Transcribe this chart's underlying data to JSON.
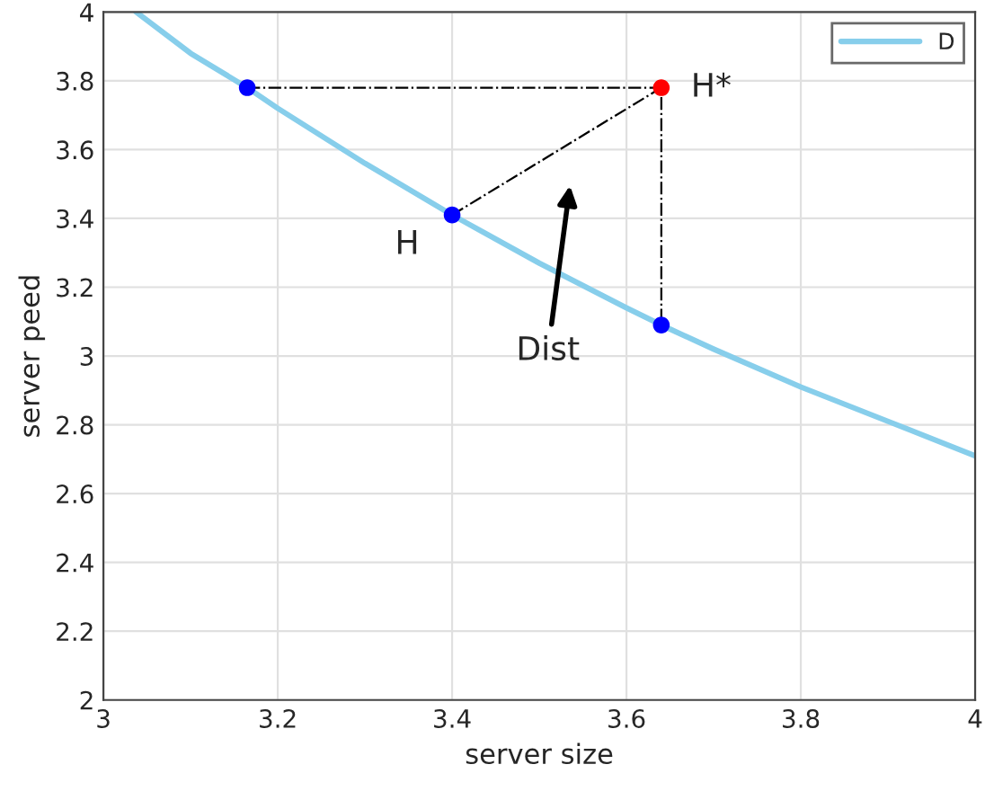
{
  "chart_data": {
    "type": "line",
    "xlabel": "server size",
    "ylabel": "server peed",
    "xlim": [
      3,
      4
    ],
    "ylim": [
      2,
      4
    ],
    "xticks": [
      3,
      3.2,
      3.4,
      3.6,
      3.8,
      4
    ],
    "yticks": [
      2,
      2.2,
      2.4,
      2.6,
      2.8,
      3,
      3.2,
      3.4,
      3.6,
      3.8,
      4
    ],
    "grid": true,
    "legend": "top right",
    "series": [
      {
        "name": "D",
        "color": "#87ceeb",
        "x": [
          3.0375,
          3.1,
          3.165,
          3.2,
          3.3,
          3.4,
          3.5,
          3.6,
          3.64,
          3.7,
          3.8,
          3.9,
          4.0
        ],
        "values": [
          4.0,
          3.88,
          3.78,
          3.72,
          3.56,
          3.41,
          3.27,
          3.14,
          3.09,
          3.02,
          2.91,
          2.81,
          2.71
        ]
      },
      {
        "type": "line",
        "line_style": "dashdot",
        "color": "#000000",
        "x": [
          3.165,
          3.64,
          3.64
        ],
        "values": [
          3.78,
          3.78,
          3.09
        ]
      },
      {
        "type": "line",
        "line_style": "dashdot",
        "color": "#000000",
        "x": [
          3.4,
          3.64
        ],
        "values": [
          3.41,
          3.78
        ]
      },
      {
        "type": "scatter",
        "marker": "circle",
        "colors": [
          "#0000ff",
          "#0000ff",
          "#0000ff",
          "#ff0000"
        ],
        "x": [
          3.165,
          3.4,
          3.64,
          3.64
        ],
        "values": [
          3.78,
          3.41,
          3.09,
          3.78
        ]
      }
    ],
    "annotations": [
      {
        "text": "H",
        "x": 3.4,
        "y": 3.41
      },
      {
        "text": "H*",
        "x": 3.64,
        "y": 3.78
      },
      "Dist"
    ]
  }
}
